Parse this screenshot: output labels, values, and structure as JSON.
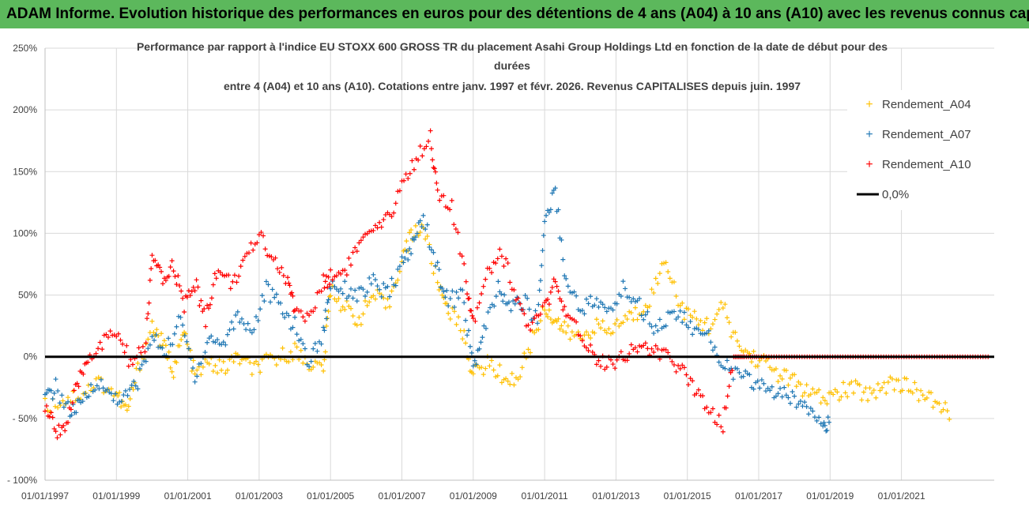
{
  "banner": {
    "text": "ADAM Informe. Evolution historique des performances en euros pour des détentions de 4 ans (A04) à 10 ans (A10) avec les revenus connus capitalisés"
  },
  "colors": {
    "banner_bg": "#5cb85c",
    "A04": "#ffc000",
    "A07": "#1f77b4",
    "A10": "#ff0000",
    "zero_line": "#000000"
  },
  "chart_data": {
    "type": "scatter",
    "title_lines": [
      "Performance par rapport à l'indice EU STOXX 600 GROSS TR  du placement Asahi Group Holdings Ltd en fonction de la date de début pour des",
      "durées",
      "entre 4 (A04) et 10 ans (A10). Cotations entre janv. 1997 et févr. 2026. Revenus CAPITALISES depuis juin. 1997"
    ],
    "x_tick_labels": [
      "01/01/1997",
      "01/01/1999",
      "01/01/2001",
      "01/01/2003",
      "01/01/2005",
      "01/01/2007",
      "01/01/2009",
      "01/01/2011",
      "01/01/2013",
      "01/01/2015",
      "01/01/2017",
      "01/01/2019",
      "01/01/2021"
    ],
    "y_tick_labels": [
      "250%",
      "200%",
      "150%",
      "100%",
      "50%",
      "0%",
      "- 50%",
      "- 100%"
    ],
    "xlim": [
      1997.0,
      2023.6
    ],
    "ylim": [
      -100,
      250
    ],
    "y_ticks": [
      250,
      200,
      150,
      100,
      50,
      0,
      -50,
      -100
    ],
    "grid": true,
    "legend_position": "right",
    "legend": [
      "Rendement_A04",
      "Rendement_A07",
      "Rendement_A10",
      "0,0%"
    ],
    "series": [
      {
        "name": "Rendement_A04",
        "x": [
          1997.0,
          1997.5,
          1998.0,
          1998.5,
          1999.0,
          1999.3,
          1999.6,
          2000.0,
          2000.3,
          2000.6,
          2000.9,
          2001.2,
          2001.6,
          2002.0,
          2002.4,
          2002.8,
          2003.2,
          2003.6,
          2004.0,
          2004.4,
          2004.8,
          2005.0,
          2005.4,
          2005.8,
          2006.2,
          2006.6,
          2007.0,
          2007.3,
          2007.6,
          2008.0,
          2008.3,
          2008.7,
          2009.0,
          2009.4,
          2009.8,
          2010.2,
          2010.6,
          2011.0,
          2011.3,
          2011.6,
          2012.0,
          2012.4,
          2012.8,
          2013.2,
          2013.6,
          2014.0,
          2014.4,
          2014.8,
          2015.2,
          2015.6,
          2016.0,
          2016.4,
          2016.8,
          2017.2,
          2017.6,
          2018.0,
          2018.4,
          2018.8,
          2019.2,
          2019.6,
          2020.0,
          2020.4,
          2020.8,
          2021.2,
          2021.6,
          2022.0,
          2022.4
        ],
        "values": [
          -40,
          -35,
          -30,
          -20,
          -30,
          -45,
          -10,
          25,
          10,
          -10,
          20,
          -15,
          -5,
          -10,
          0,
          -10,
          -5,
          0,
          5,
          -5,
          -10,
          55,
          40,
          30,
          50,
          40,
          80,
          100,
          105,
          60,
          40,
          20,
          -15,
          -5,
          -15,
          -20,
          10,
          40,
          30,
          20,
          15,
          25,
          20,
          30,
          35,
          50,
          80,
          40,
          30,
          25,
          40,
          10,
          0,
          -5,
          -15,
          -20,
          -30,
          -35,
          -30,
          -25,
          -30,
          -25,
          -20,
          -25,
          -30,
          -40,
          -45
        ]
      },
      {
        "name": "Rendement_A07",
        "x": [
          1997.0,
          1997.3,
          1997.7,
          1998.0,
          1998.4,
          1998.8,
          1999.2,
          1999.6,
          2000.0,
          2000.4,
          2000.8,
          2001.2,
          2001.6,
          2002.0,
          2002.4,
          2002.8,
          2003.2,
          2003.6,
          2004.0,
          2004.4,
          2004.8,
          2005.0,
          2005.4,
          2005.8,
          2006.2,
          2006.6,
          2007.0,
          2007.3,
          2007.6,
          2008.0,
          2008.3,
          2008.7,
          2009.0,
          2009.3,
          2009.7,
          2010.0,
          2010.4,
          2010.8,
          2011.0,
          2011.3,
          2011.6,
          2012.0,
          2012.4,
          2012.8,
          2013.2,
          2013.6,
          2014.0,
          2014.4,
          2014.8,
          2015.2,
          2015.6,
          2016.0,
          2016.4,
          2016.8,
          2017.2,
          2017.6,
          2018.0,
          2018.4,
          2018.8,
          2019.0
        ],
        "values": [
          -35,
          -25,
          -45,
          -40,
          -20,
          -30,
          -35,
          -20,
          15,
          5,
          30,
          -15,
          15,
          10,
          35,
          20,
          55,
          40,
          25,
          -5,
          20,
          60,
          55,
          50,
          60,
          50,
          75,
          90,
          115,
          70,
          45,
          50,
          -10,
          20,
          55,
          40,
          45,
          30,
          110,
          135,
          60,
          40,
          45,
          35,
          55,
          45,
          25,
          30,
          35,
          20,
          15,
          -5,
          -15,
          -20,
          -25,
          -30,
          -35,
          -40,
          -50,
          -58
        ]
      },
      {
        "name": "Rendement_A10",
        "x": [
          1997.0,
          1997.3,
          1997.6,
          1997.9,
          1998.2,
          1998.6,
          1999.0,
          1999.4,
          1999.8,
          2000.0,
          2000.3,
          2000.6,
          2000.9,
          2001.2,
          2001.5,
          2001.8,
          2002.2,
          2002.6,
          2003.0,
          2003.4,
          2003.8,
          2004.0,
          2004.4,
          2004.8,
          2005.0,
          2005.4,
          2005.8,
          2006.2,
          2006.6,
          2007.0,
          2007.4,
          2007.8,
          2008.0,
          2008.4,
          2008.8,
          2009.0,
          2009.4,
          2009.8,
          2010.2,
          2010.6,
          2011.0,
          2011.3,
          2011.6,
          2012.0,
          2012.4,
          2012.8,
          2013.2,
          2013.6,
          2014.0,
          2014.4,
          2014.8,
          2015.2,
          2015.6,
          2016.0,
          2016.3,
          2016.6,
          2017.0,
          2017.5,
          2018.0,
          2018.5,
          2019.0,
          2019.5,
          2020.0,
          2020.5,
          2021.0,
          2021.5,
          2022.0,
          2022.5,
          2023.0,
          2023.5
        ],
        "values": [
          -40,
          -60,
          -55,
          -25,
          0,
          10,
          20,
          -5,
          5,
          80,
          60,
          75,
          40,
          60,
          30,
          70,
          60,
          75,
          100,
          80,
          60,
          40,
          30,
          60,
          65,
          70,
          90,
          100,
          110,
          140,
          160,
          180,
          130,
          120,
          60,
          30,
          70,
          85,
          50,
          20,
          40,
          60,
          30,
          20,
          0,
          -5,
          0,
          10,
          5,
          0,
          -10,
          -25,
          -40,
          -55,
          0,
          0,
          0,
          0,
          0,
          0,
          0,
          0,
          0,
          0,
          0,
          0,
          0,
          0,
          0,
          0
        ]
      }
    ]
  }
}
